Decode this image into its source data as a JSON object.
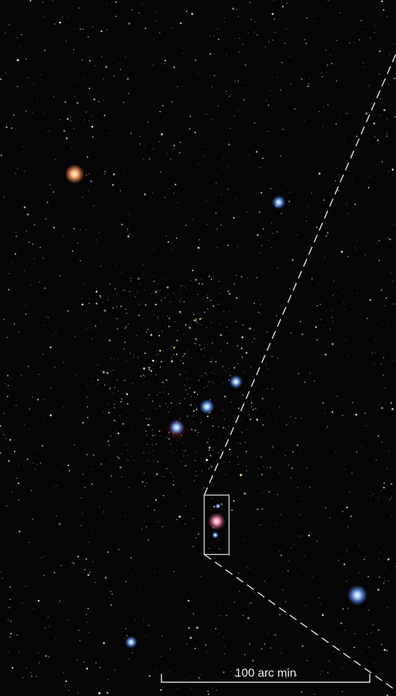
{
  "scale_bar": {
    "label": "100 arc min"
  }
}
